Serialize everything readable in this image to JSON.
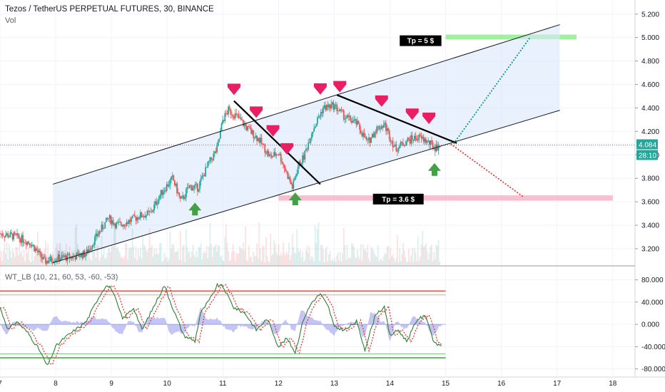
{
  "header": {
    "title": "Tezos / TetherUS PERPETUAL FUTURES, 30, BINANCE",
    "volume_label": "Vol",
    "indicator_label": "WT_LB (10, 21, 60, 53, -60, -53)"
  },
  "colors": {
    "bull": "#26a69a",
    "bear": "#ef5350",
    "channel_fill": "#dbe7fb",
    "current_price": "#26a69a",
    "tp_up": "#8ef08c",
    "tp_down": "#f4a9c0",
    "arrow_down": "#e91e63",
    "arrow_up": "#43a047",
    "wt1": "#2e7d32",
    "wt2": "#e53935",
    "wt_fill": "#7e7ee8"
  },
  "chart_data": [
    {
      "type": "candlestick",
      "title": "Tezos / TetherUS PERPETUAL FUTURES, 30, BINANCE",
      "x_ticks": [
        "7",
        "8",
        "9",
        "10",
        "11",
        "12",
        "13",
        "14",
        "15",
        "16",
        "17",
        "18"
      ],
      "y_ticks": [
        "5.200",
        "5.000",
        "4.800",
        "4.600",
        "4.400",
        "4.200",
        "4.000",
        "3.800",
        "3.600",
        "3.400",
        "3.200"
      ],
      "ylim": [
        3.06,
        5.32
      ],
      "xlim": [
        7.0,
        18.4
      ],
      "current_price": "4.084",
      "countdown": "28:10",
      "close_path": [
        [
          7.0,
          3.33
        ],
        [
          7.3,
          3.3
        ],
        [
          7.55,
          3.25
        ],
        [
          7.8,
          3.09
        ],
        [
          8.0,
          3.12
        ],
        [
          8.3,
          3.13
        ],
        [
          8.55,
          3.16
        ],
        [
          8.75,
          3.32
        ],
        [
          8.95,
          3.46
        ],
        [
          9.1,
          3.4
        ],
        [
          9.3,
          3.43
        ],
        [
          9.5,
          3.48
        ],
        [
          9.7,
          3.5
        ],
        [
          9.9,
          3.68
        ],
        [
          10.1,
          3.8
        ],
        [
          10.25,
          3.6
        ],
        [
          10.4,
          3.73
        ],
        [
          10.55,
          3.72
        ],
        [
          10.75,
          3.93
        ],
        [
          10.9,
          4.05
        ],
        [
          11.0,
          4.3
        ],
        [
          11.1,
          4.38
        ],
        [
          11.25,
          4.33
        ],
        [
          11.45,
          4.22
        ],
        [
          11.65,
          4.13
        ],
        [
          11.85,
          3.98
        ],
        [
          12.0,
          4.02
        ],
        [
          12.1,
          3.9
        ],
        [
          12.25,
          3.72
        ],
        [
          12.35,
          3.9
        ],
        [
          12.45,
          3.98
        ],
        [
          12.6,
          4.2
        ],
        [
          12.8,
          4.4
        ],
        [
          13.0,
          4.42
        ],
        [
          13.2,
          4.32
        ],
        [
          13.4,
          4.27
        ],
        [
          13.6,
          4.1
        ],
        [
          13.75,
          4.22
        ],
        [
          13.9,
          4.26
        ],
        [
          14.1,
          4.05
        ],
        [
          14.3,
          4.12
        ],
        [
          14.5,
          4.15
        ],
        [
          14.65,
          4.12
        ],
        [
          14.8,
          4.06
        ],
        [
          14.9,
          4.08
        ]
      ],
      "overlays": {
        "channel_upper": [
          [
            7.95,
            3.75
          ],
          [
            17.05,
            5.11
          ]
        ],
        "channel_lower": [
          [
            7.95,
            3.08
          ],
          [
            17.05,
            4.38
          ]
        ],
        "trendline_1": [
          [
            11.2,
            4.46
          ],
          [
            12.75,
            3.75
          ]
        ],
        "trendline_2": [
          [
            13.05,
            4.51
          ],
          [
            15.2,
            4.1
          ]
        ],
        "projection_up": [
          [
            15.15,
            4.1
          ],
          [
            16.5,
            4.99
          ]
        ],
        "projection_down": [
          [
            15.1,
            4.09
          ],
          [
            16.4,
            3.64
          ]
        ],
        "tp_up_zone": {
          "x": [
            15.0,
            17.35
          ],
          "y": [
            4.985,
            5.025
          ]
        },
        "tp_down_zone": {
          "x": [
            12.0,
            18.0
          ],
          "y": [
            3.61,
            3.655
          ]
        }
      },
      "annotations": [
        {
          "text": "Tp = 5 $",
          "x": 14.55,
          "y": 4.97
        },
        {
          "text": "Tp = 3.6 $",
          "x": 14.15,
          "y": 3.62
        }
      ],
      "down_arrows": [
        11.2,
        11.6,
        11.9,
        12.15,
        12.75,
        13.1,
        13.85,
        14.4,
        14.7
      ],
      "up_arrows": [
        10.5,
        12.3,
        14.8
      ]
    },
    {
      "type": "line",
      "name": "WT_LB (10, 21, 60, 53, -60, -53)",
      "y_ticks": [
        "80.000",
        "40.000",
        "0.000",
        "-40.000",
        "-80.000"
      ],
      "ylim": [
        -92,
        100
      ],
      "levels": {
        "ob1": 60,
        "ob2": 53,
        "os1": -60,
        "os2": -53
      },
      "wt1_points": [
        [
          7.0,
          30
        ],
        [
          7.15,
          -10
        ],
        [
          7.3,
          5
        ],
        [
          7.5,
          -15
        ],
        [
          7.7,
          -45
        ],
        [
          7.85,
          -75
        ],
        [
          8.0,
          -40
        ],
        [
          8.15,
          -25
        ],
        [
          8.35,
          -10
        ],
        [
          8.55,
          5
        ],
        [
          8.75,
          45
        ],
        [
          8.9,
          70
        ],
        [
          9.0,
          65
        ],
        [
          9.2,
          10
        ],
        [
          9.4,
          30
        ],
        [
          9.55,
          -10
        ],
        [
          9.8,
          40
        ],
        [
          9.95,
          70
        ],
        [
          10.1,
          30
        ],
        [
          10.3,
          -20
        ],
        [
          10.5,
          -30
        ],
        [
          10.6,
          20
        ],
        [
          10.8,
          50
        ],
        [
          10.9,
          70
        ],
        [
          11.0,
          68
        ],
        [
          11.2,
          30
        ],
        [
          11.4,
          20
        ],
        [
          11.6,
          -10
        ],
        [
          11.8,
          10
        ],
        [
          12.0,
          -40
        ],
        [
          12.15,
          -25
        ],
        [
          12.3,
          -50
        ],
        [
          12.45,
          10
        ],
        [
          12.6,
          40
        ],
        [
          12.75,
          55
        ],
        [
          12.9,
          30
        ],
        [
          13.0,
          -5
        ],
        [
          13.2,
          -10
        ],
        [
          13.4,
          5
        ],
        [
          13.55,
          -45
        ],
        [
          13.75,
          20
        ],
        [
          13.9,
          30
        ],
        [
          14.0,
          -20
        ],
        [
          14.15,
          -10
        ],
        [
          14.3,
          -30
        ],
        [
          14.5,
          10
        ],
        [
          14.65,
          15
        ],
        [
          14.8,
          -35
        ],
        [
          14.95,
          -38
        ]
      ]
    }
  ]
}
